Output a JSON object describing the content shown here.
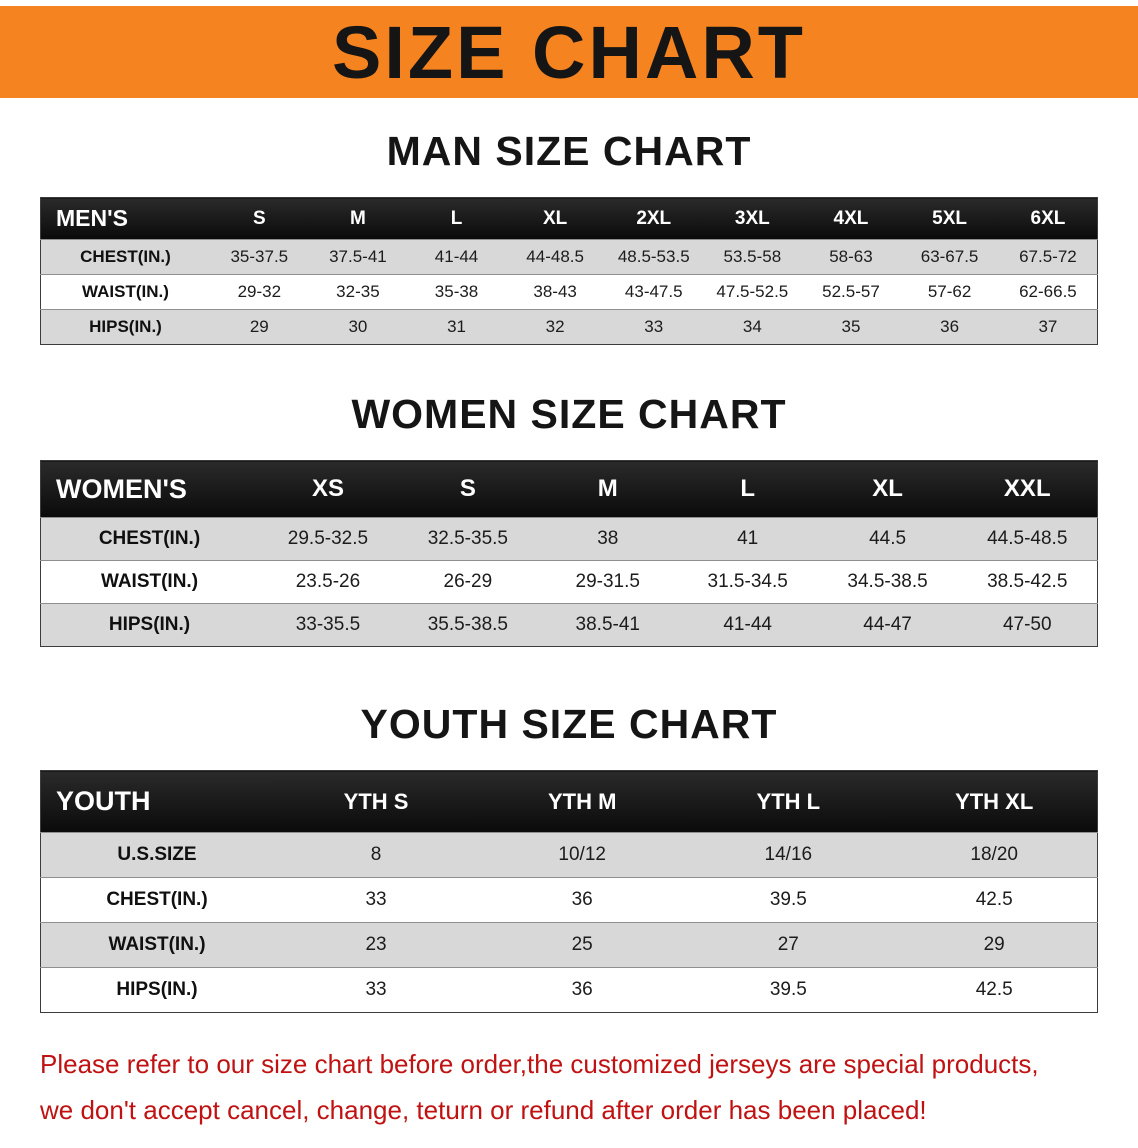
{
  "banner": {
    "title": "SIZE CHART",
    "bg_color": "#f5831f"
  },
  "sections": [
    {
      "title": "MAN SIZE CHART",
      "table": {
        "header_label": "MEN'S",
        "columns": [
          "S",
          "M",
          "L",
          "XL",
          "2XL",
          "3XL",
          "4XL",
          "5XL",
          "6XL"
        ],
        "rows": [
          {
            "label": "CHEST(IN.)",
            "values": [
              "35-37.5",
              "37.5-41",
              "41-44",
              "44-48.5",
              "48.5-53.5",
              "53.5-58",
              "58-63",
              "63-67.5",
              "67.5-72"
            ]
          },
          {
            "label": "WAIST(IN.)",
            "values": [
              "29-32",
              "32-35",
              "35-38",
              "38-43",
              "43-47.5",
              "47.5-52.5",
              "52.5-57",
              "57-62",
              "62-66.5"
            ]
          },
          {
            "label": "HIPS(IN.)",
            "values": [
              "29",
              "30",
              "31",
              "32",
              "33",
              "34",
              "35",
              "36",
              "37"
            ]
          }
        ]
      }
    },
    {
      "title": "WOMEN SIZE CHART",
      "table": {
        "header_label": "WOMEN'S",
        "columns": [
          "XS",
          "S",
          "M",
          "L",
          "XL",
          "XXL"
        ],
        "rows": [
          {
            "label": "CHEST(IN.)",
            "values": [
              "29.5-32.5",
              "32.5-35.5",
              "38",
              "41",
              "44.5",
              "44.5-48.5"
            ]
          },
          {
            "label": "WAIST(IN.)",
            "values": [
              "23.5-26",
              "26-29",
              "29-31.5",
              "31.5-34.5",
              "34.5-38.5",
              "38.5-42.5"
            ]
          },
          {
            "label": "HIPS(IN.)",
            "values": [
              "33-35.5",
              "35.5-38.5",
              "38.5-41",
              "41-44",
              "44-47",
              "47-50"
            ]
          }
        ]
      }
    },
    {
      "title": "YOUTH SIZE CHART",
      "table": {
        "header_label": "YOUTH",
        "columns": [
          "YTH S",
          "YTH M",
          "YTH L",
          "YTH XL"
        ],
        "rows": [
          {
            "label": "U.S.SIZE",
            "values": [
              "8",
              "10/12",
              "14/16",
              "18/20"
            ]
          },
          {
            "label": "CHEST(IN.)",
            "values": [
              "33",
              "36",
              "39.5",
              "42.5"
            ]
          },
          {
            "label": "WAIST(IN.)",
            "values": [
              "23",
              "25",
              "27",
              "29"
            ]
          },
          {
            "label": "HIPS(IN.)",
            "values": [
              "33",
              "36",
              "39.5",
              "42.5"
            ]
          }
        ]
      }
    }
  ],
  "footer": {
    "line1": "Please refer to our size chart before order,the customized jerseys are special products,",
    "line2": "we don't accept cancel, change, teturn or refund after order has been placed!",
    "text_color": "#c01212"
  }
}
